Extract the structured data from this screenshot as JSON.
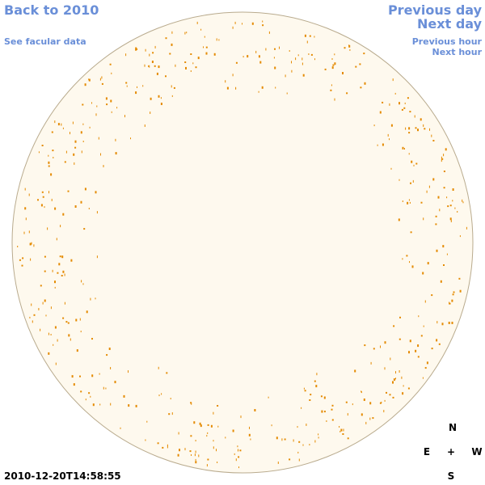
{
  "header": {
    "back_link": "Back to 2010",
    "facular_link": "See facular data",
    "previous_day": "Previous day",
    "next_day": "Next day",
    "previous_hour": "Previous hour",
    "next_hour": "Next hour"
  },
  "timestamp": "2010-12-20T14:58:55",
  "compass": {
    "north": "N",
    "east": "E",
    "center": "+",
    "west": "W",
    "south": "S"
  }
}
